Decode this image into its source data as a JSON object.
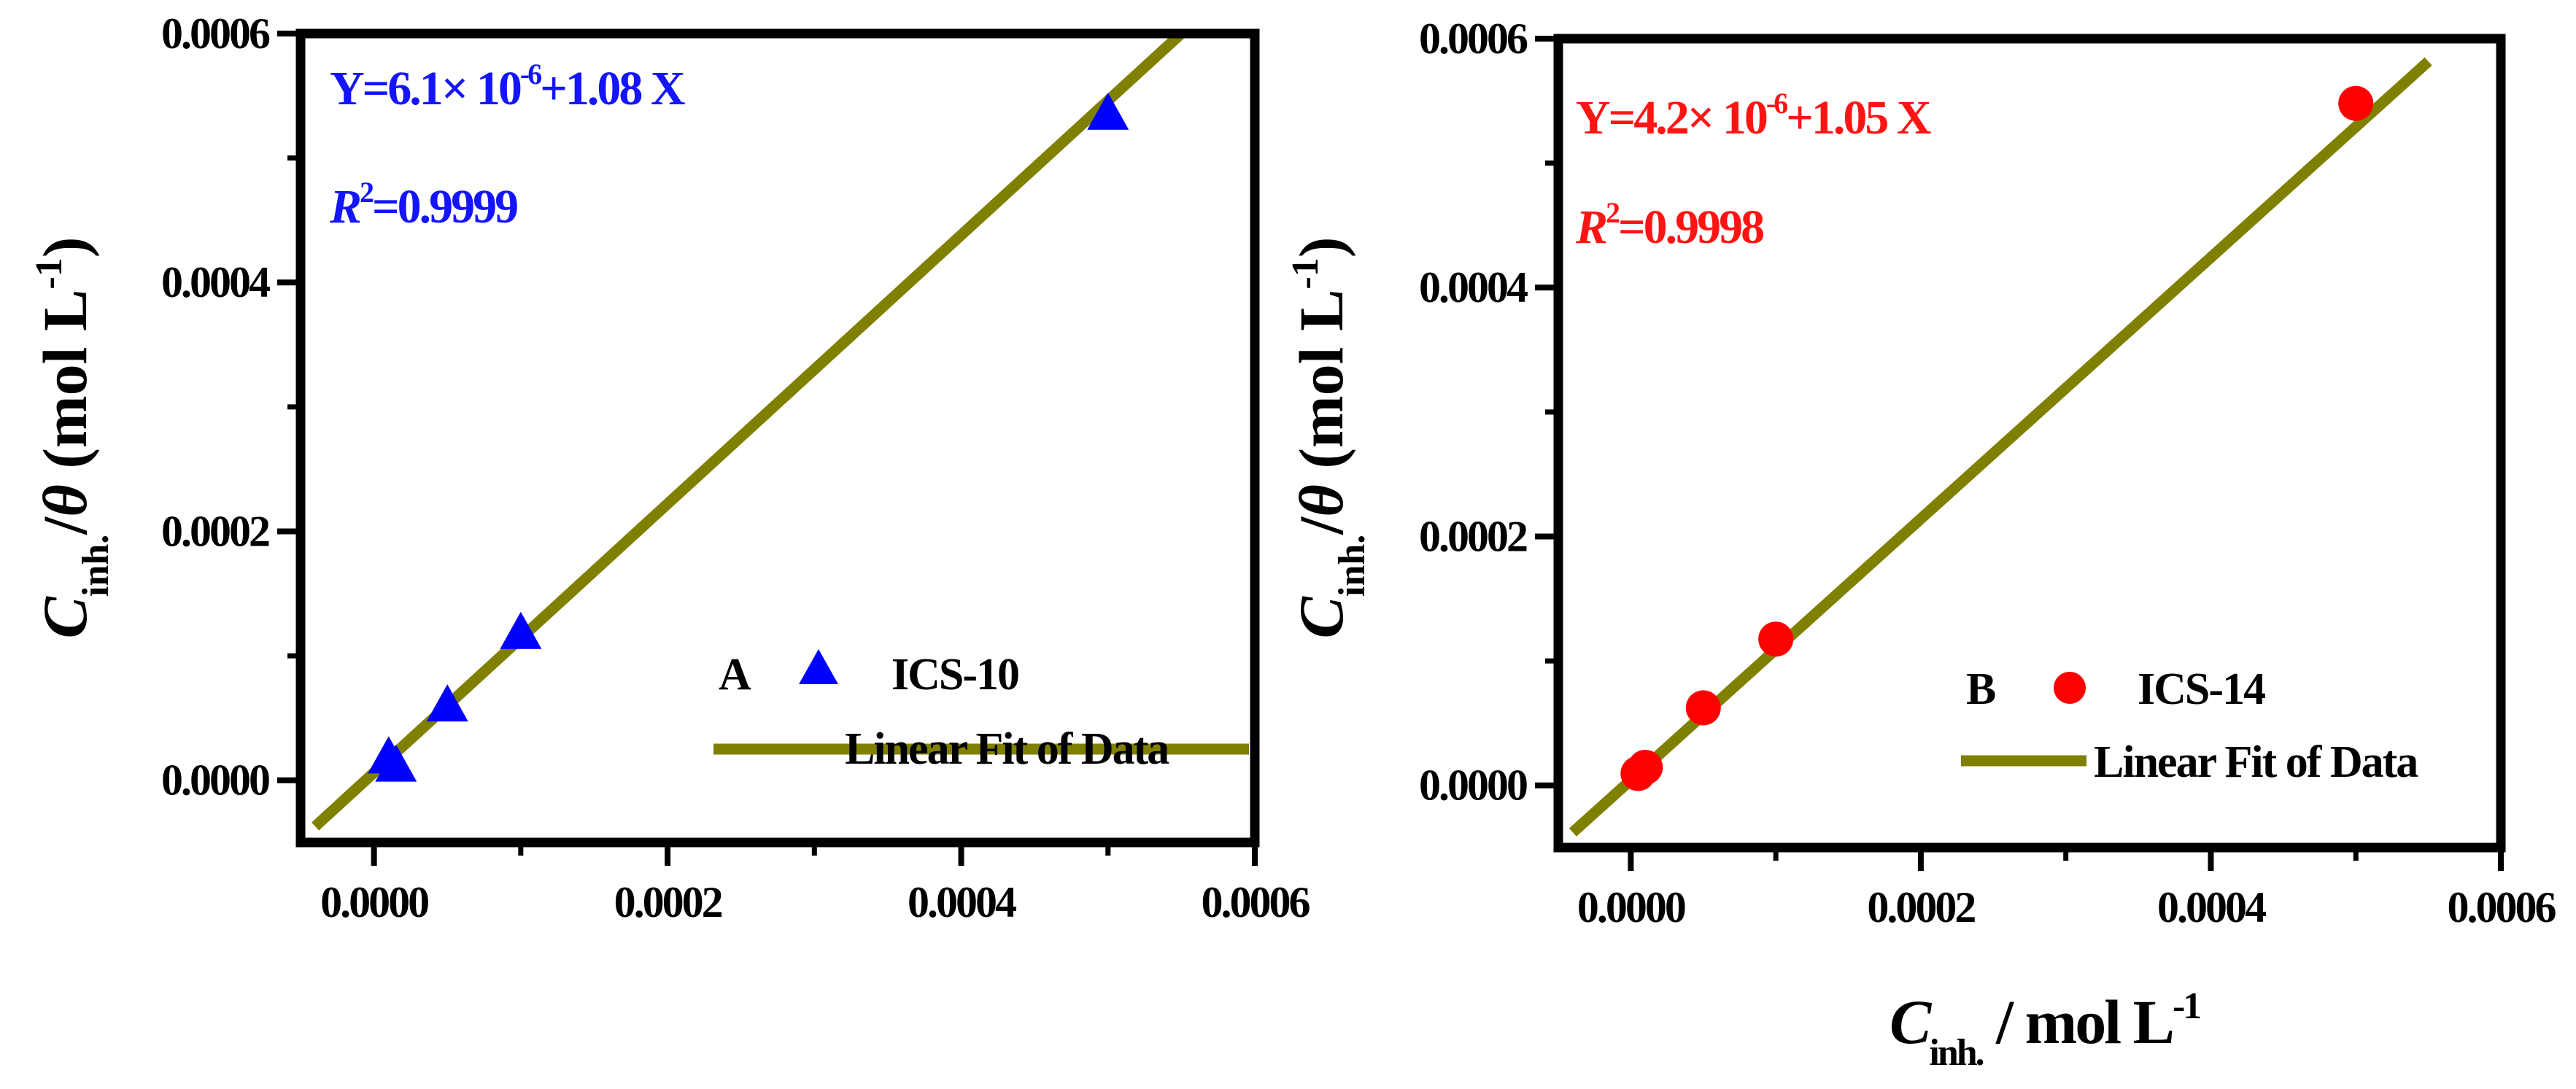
{
  "chart_data": [
    {
      "type": "scatter",
      "panel_letter": "A",
      "series": [
        {
          "name": "ICS-10",
          "marker": "triangle",
          "color": "#0000ff",
          "x": [
            1e-05,
            1.5e-05,
            5e-05,
            0.0001,
            0.0005
          ],
          "y": [
            1.78e-05,
            1.12e-05,
            5.95e-05,
            0.0001178,
            0.000535
          ]
        }
      ],
      "fit": {
        "name": "Linear Fit of Data",
        "intercept": 6.1e-06,
        "slope": 1.08,
        "color": "#808000",
        "x_range": [
          -4e-05,
          0.00055
        ]
      },
      "equation": {
        "prefix": "Y=6.1× 10",
        "exponent": "-6",
        "suffix": "+1.08  X"
      },
      "r2": {
        "var": "R",
        "exp": "2",
        "value": "=0.9999"
      },
      "annotation_color": "#1414ff",
      "xlim": [
        -5e-05,
        0.0006
      ],
      "ylim": [
        -5e-05,
        0.0006
      ],
      "xticks": [
        "0.0000",
        "0.0002",
        "0.0004",
        "0.0006"
      ],
      "yticks": [
        "0.0000",
        "0.0002",
        "0.0004",
        "0.0006"
      ],
      "ylabel": {
        "c": "C",
        "sub": "inh.",
        "rest_a": "/",
        "theta": "θ",
        "rest_b": " (mol L",
        "exp": "-1",
        "close": ")"
      }
    },
    {
      "type": "scatter",
      "panel_letter": "B",
      "series": [
        {
          "name": "ICS-14",
          "marker": "circle",
          "color": "#ff0000",
          "x": [
            5e-06,
            1e-05,
            5e-05,
            0.0001,
            0.0005
          ],
          "y": [
            9.5e-06,
            1.45e-05,
            6.23e-05,
            0.0001175,
            0.000548
          ]
        }
      ],
      "fit": {
        "name": "Linear Fit of Data",
        "intercept": 4.2e-06,
        "slope": 1.05,
        "color": "#808000",
        "x_range": [
          -4e-05,
          0.00055
        ]
      },
      "equation": {
        "prefix": "Y=4.2× 10",
        "exponent": "-6",
        "suffix": "+1.05  X"
      },
      "r2": {
        "var": "R",
        "exp": "2",
        "value": "=0.9998"
      },
      "annotation_color": "#ff1414",
      "xlim": [
        -5e-05,
        0.0006
      ],
      "ylim": [
        -5e-05,
        0.0006
      ],
      "xticks": [
        "0.0000",
        "0.0002",
        "0.0004",
        "0.0006"
      ],
      "yticks": [
        "0.0000",
        "0.0002",
        "0.0004",
        "0.0006"
      ],
      "ylabel": {
        "c": "C",
        "sub": "inh.",
        "rest_a": "/",
        "theta": "θ",
        "rest_b": " (mol L",
        "exp": "-1",
        "close": ")"
      },
      "xlabel": {
        "c": "C",
        "sub": "inh.",
        "rest": " / mol L",
        "exp": "-1"
      }
    }
  ]
}
